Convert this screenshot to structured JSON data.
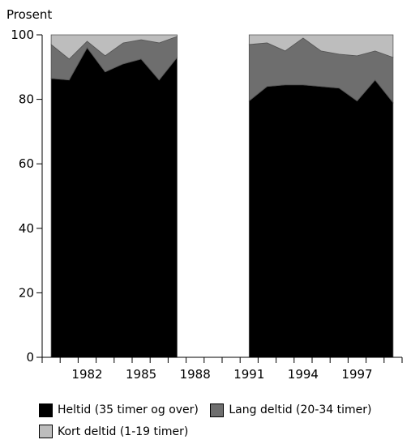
{
  "chart_data": {
    "type": "area",
    "stacked": true,
    "percent": true,
    "ylabel": "Prosent",
    "ylim": [
      0,
      100
    ],
    "yticks": [
      0,
      20,
      40,
      60,
      80,
      100
    ],
    "x": [
      1980,
      1981,
      1982,
      1983,
      1984,
      1985,
      1986,
      1987,
      1988,
      1989,
      1990,
      1991,
      1992,
      1993,
      1994,
      1995,
      1996,
      1997,
      1998,
      1999
    ],
    "xticklabels": [
      "1982",
      "1985",
      "1988",
      "1991",
      "1994",
      "1997"
    ],
    "gap": [
      1988,
      1990
    ],
    "series": [
      {
        "name": "Heltid (35 timer og over)",
        "color": "#000000",
        "values": [
          86.5,
          86,
          96,
          88.5,
          91,
          92.5,
          86,
          93,
          null,
          null,
          null,
          79.5,
          84,
          84.5,
          84.5,
          84,
          83.5,
          79.5,
          86,
          79
        ]
      },
      {
        "name": "Lang deltid (20-34 timer)",
        "color": "#6e6e6e",
        "values": [
          10.5,
          6.5,
          2,
          5,
          6.5,
          6,
          11.5,
          6.5,
          null,
          null,
          null,
          17.5,
          13.5,
          10.5,
          14.5,
          11,
          10.5,
          14,
          9,
          14
        ]
      },
      {
        "name": "Kort deltid (1-19 timer)",
        "color": "#bdbdbd",
        "values": [
          3,
          7.5,
          2,
          6.5,
          2.5,
          1.5,
          2.5,
          0.5,
          null,
          null,
          null,
          3,
          2.5,
          5,
          1,
          5,
          6,
          6.5,
          5,
          7
        ]
      }
    ],
    "grid": false,
    "legend_position": "bottom"
  }
}
